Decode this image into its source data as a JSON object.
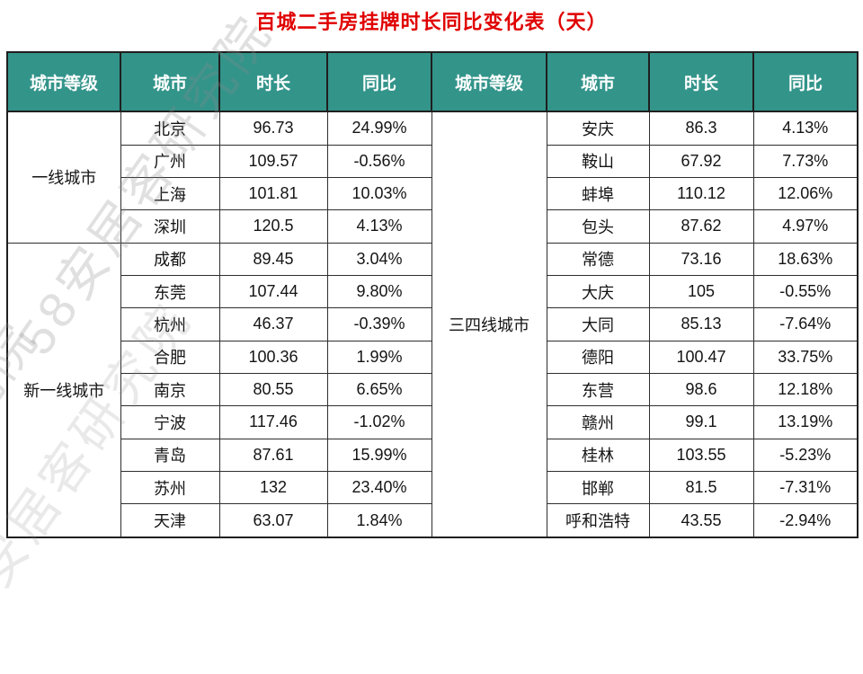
{
  "title": "百城二手房挂牌时长同比变化表（天）",
  "watermark_text": "58安居客研究院",
  "colors": {
    "title": "#e00000",
    "header_bg": "#33948A",
    "header_text": "#ffffff",
    "border": "#1f1f1f",
    "watermark": "#8a8a8a"
  },
  "chart_data": {
    "type": "table",
    "title": "百城二手房挂牌时长同比变化表（天）",
    "columns": [
      "城市等级",
      "城市",
      "时长",
      "同比",
      "城市等级",
      "城市",
      "时长",
      "同比"
    ],
    "groups": [
      {
        "tier": "一线城市",
        "side": "left",
        "rows": [
          {
            "city": "北京",
            "duration": "96.73",
            "yoy": "24.99%"
          },
          {
            "city": "广州",
            "duration": "109.57",
            "yoy": "-0.56%"
          },
          {
            "city": "上海",
            "duration": "101.81",
            "yoy": "10.03%"
          },
          {
            "city": "深圳",
            "duration": "120.5",
            "yoy": "4.13%"
          }
        ]
      },
      {
        "tier": "新一线城市",
        "side": "left",
        "rows": [
          {
            "city": "成都",
            "duration": "89.45",
            "yoy": "3.04%"
          },
          {
            "city": "东莞",
            "duration": "107.44",
            "yoy": "9.80%"
          },
          {
            "city": "杭州",
            "duration": "46.37",
            "yoy": "-0.39%"
          },
          {
            "city": "合肥",
            "duration": "100.36",
            "yoy": "1.99%"
          },
          {
            "city": "南京",
            "duration": "80.55",
            "yoy": "6.65%"
          },
          {
            "city": "宁波",
            "duration": "117.46",
            "yoy": "-1.02%"
          },
          {
            "city": "青岛",
            "duration": "87.61",
            "yoy": "15.99%"
          },
          {
            "city": "苏州",
            "duration": "132",
            "yoy": "23.40%"
          },
          {
            "city": "天津",
            "duration": "63.07",
            "yoy": "1.84%"
          }
        ]
      },
      {
        "tier": "三四线城市",
        "side": "right",
        "rows": [
          {
            "city": "安庆",
            "duration": "86.3",
            "yoy": "4.13%"
          },
          {
            "city": "鞍山",
            "duration": "67.92",
            "yoy": "7.73%"
          },
          {
            "city": "蚌埠",
            "duration": "110.12",
            "yoy": "12.06%"
          },
          {
            "city": "包头",
            "duration": "87.62",
            "yoy": "4.97%"
          },
          {
            "city": "常德",
            "duration": "73.16",
            "yoy": "18.63%"
          },
          {
            "city": "大庆",
            "duration": "105",
            "yoy": "-0.55%"
          },
          {
            "city": "大同",
            "duration": "85.13",
            "yoy": "-7.64%"
          },
          {
            "city": "德阳",
            "duration": "100.47",
            "yoy": "33.75%"
          },
          {
            "city": "东营",
            "duration": "98.6",
            "yoy": "12.18%"
          },
          {
            "city": "赣州",
            "duration": "99.1",
            "yoy": "13.19%"
          },
          {
            "city": "桂林",
            "duration": "103.55",
            "yoy": "-5.23%"
          },
          {
            "city": "邯郸",
            "duration": "81.5",
            "yoy": "-7.31%"
          },
          {
            "city": "呼和浩特",
            "duration": "43.55",
            "yoy": "-2.94%"
          }
        ]
      }
    ]
  }
}
